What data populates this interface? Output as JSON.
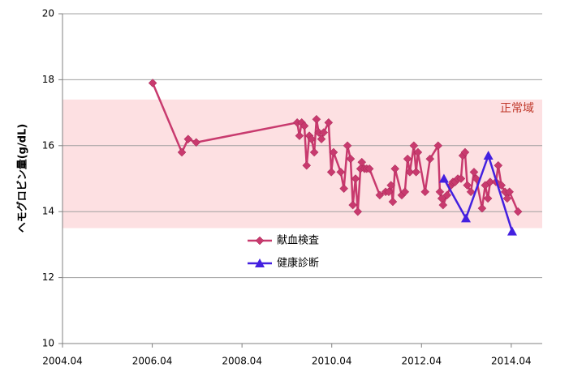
{
  "chart_data": {
    "type": "line",
    "ylabel": "ヘモグロビン量(g/dL)",
    "xlim": [
      2004.25,
      2014.94
    ],
    "ylim": [
      10,
      20
    ],
    "xticks": [
      {
        "value": 2004.25,
        "label": "2004.04"
      },
      {
        "value": 2006.25,
        "label": "2006.04"
      },
      {
        "value": 2008.25,
        "label": "2008.04"
      },
      {
        "value": 2010.25,
        "label": "2010.04"
      },
      {
        "value": 2012.25,
        "label": "2012.04"
      },
      {
        "value": 2014.25,
        "label": "2014.04"
      }
    ],
    "yticks": [
      10,
      12,
      14,
      16,
      18,
      20
    ],
    "grid": true,
    "legend": "center",
    "band": {
      "label": "正常域",
      "range": [
        13.5,
        17.4
      ],
      "color": "#fde0e2",
      "label_color": "#c0392b"
    },
    "series": [
      {
        "name": "献血検査",
        "color": "#c83a6e",
        "marker": "diamond",
        "x": [
          2006.26,
          2006.91,
          2007.05,
          2007.23,
          2009.48,
          2009.53,
          2009.58,
          2009.64,
          2009.69,
          2009.75,
          2009.8,
          2009.86,
          2009.91,
          2009.96,
          2010.02,
          2010.07,
          2010.18,
          2010.24,
          2010.29,
          2010.45,
          2010.52,
          2010.6,
          2010.67,
          2010.72,
          2010.78,
          2010.83,
          2010.89,
          2010.92,
          2010.98,
          2011.03,
          2011.09,
          2011.32,
          2011.45,
          2011.52,
          2011.57,
          2011.61,
          2011.66,
          2011.81,
          2011.88,
          2011.94,
          2011.99,
          2012.08,
          2012.13,
          2012.17,
          2012.33,
          2012.44,
          2012.62,
          2012.66,
          2012.7,
          2012.73,
          2012.82,
          2012.91,
          2012.95,
          2013.0,
          2013.06,
          2013.13,
          2013.17,
          2013.22,
          2013.27,
          2013.35,
          2013.42,
          2013.47,
          2013.6,
          2013.67,
          2013.73,
          2013.78,
          2013.91,
          2013.96,
          2014.03,
          2014.11,
          2014.16,
          2014.21,
          2014.4
        ],
        "values": [
          17.9,
          15.8,
          16.2,
          16.1,
          16.7,
          16.3,
          16.7,
          16.6,
          15.4,
          16.3,
          16.2,
          15.8,
          16.8,
          16.4,
          16.2,
          16.4,
          16.7,
          15.2,
          15.8,
          15.2,
          14.7,
          16.0,
          15.6,
          14.2,
          15.0,
          14.0,
          15.3,
          15.5,
          15.3,
          15.3,
          15.3,
          14.5,
          14.6,
          14.6,
          14.8,
          14.3,
          15.3,
          14.5,
          14.6,
          15.6,
          15.2,
          16.0,
          15.2,
          15.8,
          14.6,
          15.6,
          16.0,
          14.6,
          14.4,
          14.2,
          14.5,
          14.8,
          14.9,
          14.9,
          15.0,
          15.0,
          15.7,
          15.8,
          14.8,
          14.6,
          15.2,
          15.0,
          14.1,
          14.8,
          14.4,
          14.9,
          14.9,
          15.4,
          14.8,
          14.6,
          14.4,
          14.6,
          14.0
        ]
      },
      {
        "name": "健康診断",
        "color": "#4320e0",
        "marker": "triangle",
        "x": [
          2012.75,
          2013.24,
          2013.74,
          2014.27
        ],
        "values": [
          15.0,
          13.8,
          15.7,
          13.4
        ]
      }
    ]
  }
}
